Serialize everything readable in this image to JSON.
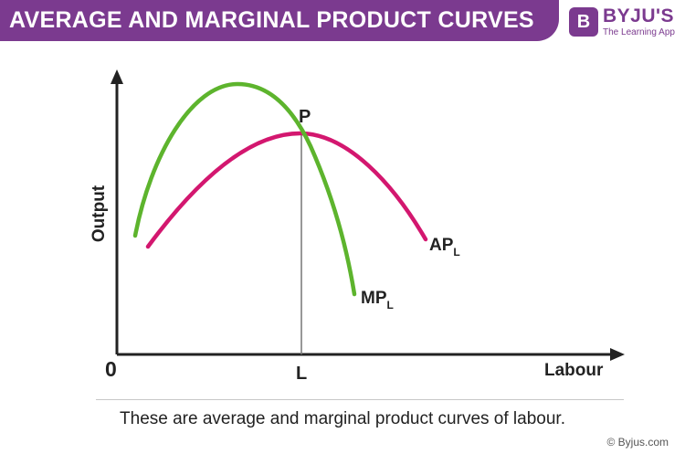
{
  "header": {
    "title": "AVERAGE AND MARGINAL PRODUCT CURVES"
  },
  "logo": {
    "mark": "B",
    "name": "BYJU'S",
    "tagline": "The Learning App",
    "color": "#7b3a8f"
  },
  "diagram": {
    "y_axis_label": "Output",
    "x_axis_label": "Labour",
    "origin_label": "0",
    "intersection_label": "P",
    "x_marker_label": "L",
    "curves": [
      {
        "name": "MP",
        "subscript": "L",
        "color": "#5db42d"
      },
      {
        "name": "AP",
        "subscript": "L",
        "color": "#d3176f"
      }
    ]
  },
  "caption": "These are average and marginal product curves of labour.",
  "footer": "© Byjus.com"
}
